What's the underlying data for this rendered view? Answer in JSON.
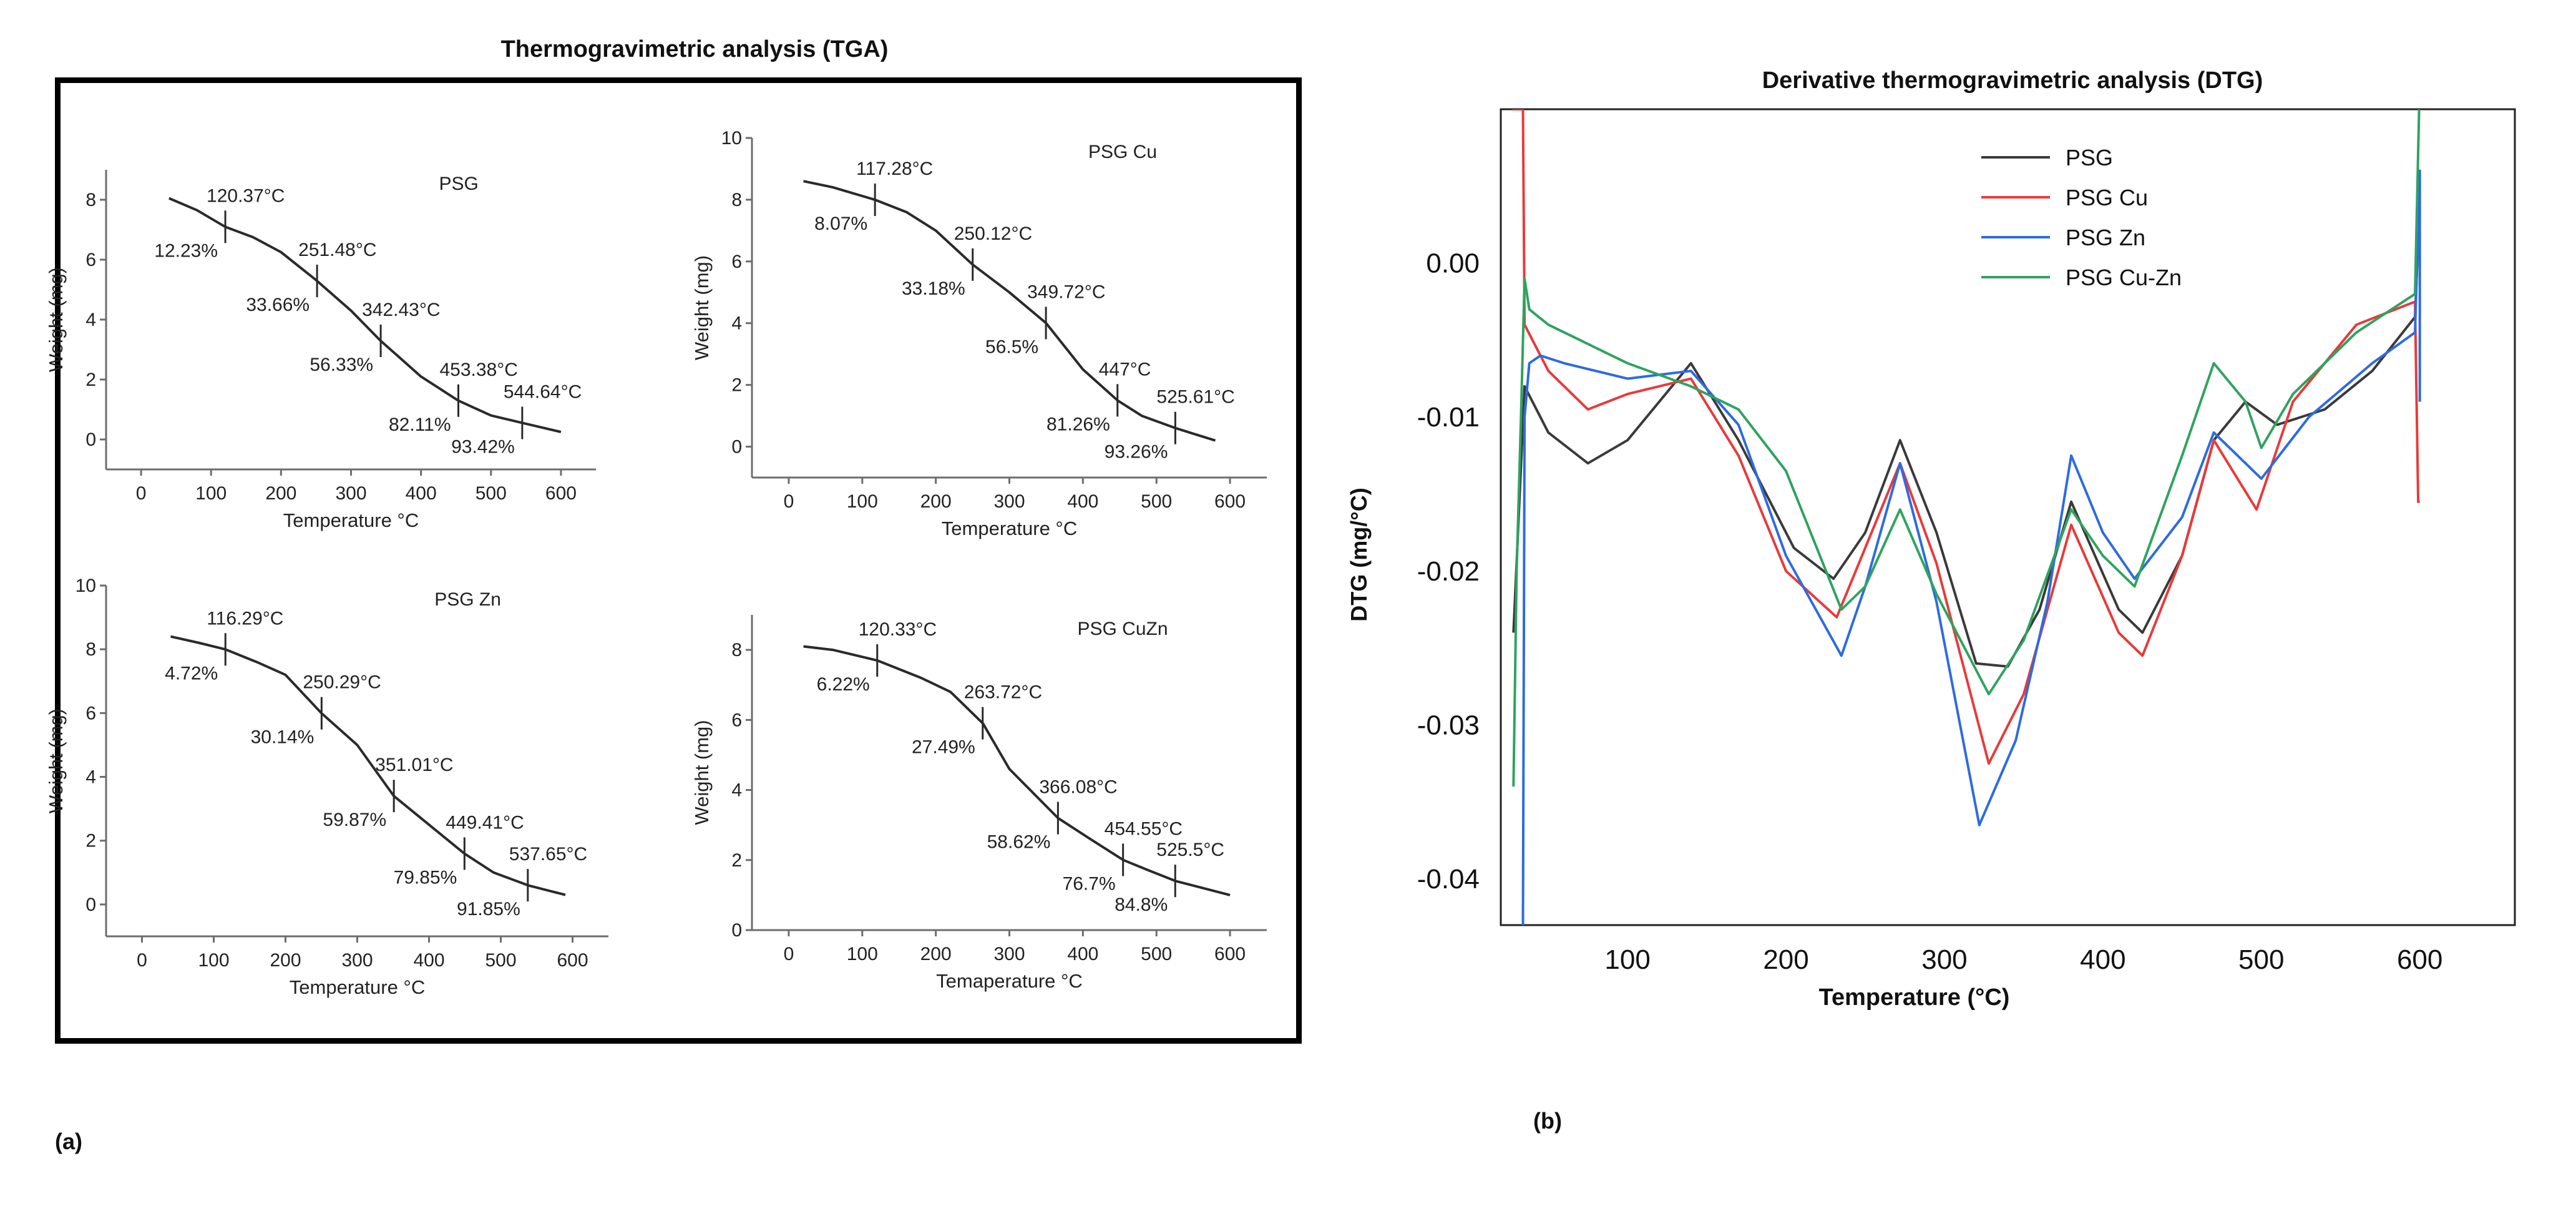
{
  "figure": {
    "panel_a_label": "(a)",
    "panel_b_label": "(b)",
    "tga_title": "Thermogravimetric analysis (TGA)",
    "dtg_title": "Derivative thermogravimetric analysis (DTG)"
  },
  "chart_data": [
    {
      "type": "line",
      "panel": "tga",
      "title": "PSG",
      "xlabel": "Temperature °C",
      "ylabel": "Weight (mg)",
      "xlim": [
        -50,
        650
      ],
      "ylim": [
        -1,
        9
      ],
      "xticks": [
        0,
        100,
        200,
        300,
        400,
        500,
        600
      ],
      "yticks": [
        0,
        2,
        4,
        6,
        8
      ],
      "x": [
        40,
        80,
        120,
        160,
        200,
        251,
        300,
        342,
        400,
        453,
        500,
        545,
        600
      ],
      "y": [
        8.05,
        7.65,
        7.1,
        6.75,
        6.25,
        5.3,
        4.3,
        3.3,
        2.1,
        1.3,
        0.8,
        0.55,
        0.25
      ],
      "markers": [
        {
          "x": 120.37,
          "temp": "120.37°C",
          "pct": "12.23%"
        },
        {
          "x": 251.48,
          "temp": "251.48°C",
          "pct": "33.66%"
        },
        {
          "x": 342.43,
          "temp": "342.43°C",
          "pct": "56.33%"
        },
        {
          "x": 453.38,
          "temp": "453.38°C",
          "pct": "82.11%"
        },
        {
          "x": 544.64,
          "temp": "544.64°C",
          "pct": "93.42%"
        }
      ]
    },
    {
      "type": "line",
      "panel": "tga",
      "title": "PSG Cu",
      "xlabel": "Temperature °C",
      "ylabel": "Weight (mg)",
      "xlim": [
        -50,
        650
      ],
      "ylim": [
        -1,
        10
      ],
      "xticks": [
        0,
        100,
        200,
        300,
        400,
        500,
        600
      ],
      "yticks": [
        0,
        2,
        4,
        6,
        8,
        10
      ],
      "x": [
        20,
        60,
        117,
        160,
        200,
        250,
        300,
        350,
        400,
        447,
        480,
        526,
        580
      ],
      "y": [
        8.6,
        8.4,
        8.0,
        7.6,
        7.0,
        5.9,
        5.0,
        4.0,
        2.5,
        1.5,
        1.0,
        0.6,
        0.2
      ],
      "markers": [
        {
          "x": 117.28,
          "temp": "117.28°C",
          "pct": "8.07%"
        },
        {
          "x": 250.12,
          "temp": "250.12°C",
          "pct": "33.18%"
        },
        {
          "x": 349.72,
          "temp": "349.72°C",
          "pct": "56.5%"
        },
        {
          "x": 447,
          "temp": "447°C",
          "pct": "81.26%"
        },
        {
          "x": 525.61,
          "temp": "525.61°C",
          "pct": "93.26%"
        }
      ]
    },
    {
      "type": "line",
      "panel": "tga",
      "title": "PSG Zn",
      "xlabel": "Temperature °C",
      "ylabel": "Weight (mg)",
      "xlim": [
        -50,
        650
      ],
      "ylim": [
        -1,
        10
      ],
      "xticks": [
        0,
        100,
        200,
        300,
        400,
        500,
        600
      ],
      "yticks": [
        0,
        2,
        4,
        6,
        8,
        10
      ],
      "x": [
        40,
        80,
        116,
        160,
        200,
        250,
        300,
        351,
        400,
        449,
        490,
        538,
        590
      ],
      "y": [
        8.4,
        8.2,
        8.0,
        7.6,
        7.2,
        6.0,
        5.0,
        3.4,
        2.5,
        1.6,
        1.0,
        0.6,
        0.3
      ],
      "markers": [
        {
          "x": 116.29,
          "temp": "116.29°C",
          "pct": "4.72%"
        },
        {
          "x": 250.29,
          "temp": "250.29°C",
          "pct": "30.14%"
        },
        {
          "x": 351.01,
          "temp": "351.01°C",
          "pct": "59.87%"
        },
        {
          "x": 449.41,
          "temp": "449.41°C",
          "pct": "79.85%"
        },
        {
          "x": 537.65,
          "temp": "537.65°C",
          "pct": "91.85%"
        }
      ]
    },
    {
      "type": "line",
      "panel": "tga",
      "title": "PSG CuZn",
      "xlabel": "Temaperature °C",
      "ylabel": "Weight (mg)",
      "xlim": [
        -50,
        650
      ],
      "ylim": [
        0,
        9
      ],
      "xticks": [
        0,
        100,
        200,
        300,
        400,
        500,
        600
      ],
      "yticks": [
        0,
        2,
        4,
        6,
        8
      ],
      "x": [
        20,
        60,
        120,
        180,
        220,
        264,
        300,
        366,
        410,
        455,
        490,
        526,
        600
      ],
      "y": [
        8.1,
        8.0,
        7.7,
        7.2,
        6.8,
        5.9,
        4.6,
        3.2,
        2.6,
        2.0,
        1.7,
        1.4,
        1.0
      ],
      "markers": [
        {
          "x": 120.33,
          "temp": "120.33°C",
          "pct": "6.22%"
        },
        {
          "x": 263.72,
          "temp": "263.72°C",
          "pct": "27.49%"
        },
        {
          "x": 366.08,
          "temp": "366.08°C",
          "pct": "58.62%"
        },
        {
          "x": 454.55,
          "temp": "454.55°C",
          "pct": "76.7%"
        },
        {
          "x": 525.5,
          "temp": "525.5°C",
          "pct": "84.8%"
        }
      ]
    },
    {
      "type": "line",
      "panel": "dtg",
      "title": "Derivative thermogravimetric analysis (DTG)",
      "xlabel": "Temperature   (°C)",
      "ylabel": "DTG (mg/°C)",
      "xlim": [
        20,
        660
      ],
      "ylim": [
        -0.043,
        0.01
      ],
      "xticks": [
        100,
        200,
        300,
        400,
        500,
        600
      ],
      "yticks": [
        0.0,
        -0.01,
        -0.02,
        -0.03,
        -0.04
      ],
      "ytick_labels": [
        "0.00",
        "-0.01",
        "-0.02",
        "-0.03",
        "-0.04"
      ],
      "legend_position": "top",
      "series": [
        {
          "name": "PSG",
          "color": "#3a3a3a",
          "x": [
            28,
            35,
            50,
            75,
            100,
            140,
            170,
            205,
            230,
            250,
            272,
            295,
            320,
            340,
            360,
            380,
            410,
            425,
            450,
            470,
            490,
            510,
            540,
            570,
            597,
            600
          ],
          "y": [
            -0.024,
            -0.008,
            -0.011,
            -0.013,
            -0.0115,
            -0.0065,
            -0.0115,
            -0.0185,
            -0.0205,
            -0.0175,
            -0.0115,
            -0.0175,
            -0.026,
            -0.0262,
            -0.0225,
            -0.0155,
            -0.0225,
            -0.024,
            -0.019,
            -0.0115,
            -0.009,
            -0.0105,
            -0.0095,
            -0.007,
            -0.0035,
            0.004
          ]
        },
        {
          "name": "PSG Cu",
          "color": "#e83a3a",
          "x": [
            27,
            28,
            30,
            33,
            34,
            35,
            50,
            75,
            100,
            140,
            170,
            200,
            232,
            250,
            272,
            295,
            328,
            350,
            380,
            410,
            425,
            450,
            470,
            497,
            520,
            560,
            597,
            599,
            600
          ],
          "y": [
            0.01,
            0.01,
            0.01,
            0.01,
            0.01,
            -0.004,
            -0.007,
            -0.0095,
            -0.0085,
            -0.0075,
            -0.0125,
            -0.02,
            -0.023,
            -0.0185,
            -0.013,
            -0.0195,
            -0.0325,
            -0.028,
            -0.017,
            -0.024,
            -0.0255,
            -0.019,
            -0.0115,
            -0.016,
            -0.009,
            -0.004,
            -0.0025,
            -0.0155,
            -0.0155
          ]
        },
        {
          "name": "PSG Zn",
          "color": "#2e6be0",
          "x": [
            34,
            35,
            38,
            45,
            60,
            100,
            140,
            170,
            200,
            235,
            250,
            272,
            295,
            322,
            345,
            365,
            380,
            400,
            420,
            450,
            470,
            500,
            530,
            570,
            597,
            600,
            600
          ],
          "y": [
            -0.043,
            -0.01,
            -0.0065,
            -0.006,
            -0.0065,
            -0.0075,
            -0.007,
            -0.0105,
            -0.019,
            -0.0255,
            -0.021,
            -0.013,
            -0.022,
            -0.0365,
            -0.031,
            -0.022,
            -0.0125,
            -0.0175,
            -0.0205,
            -0.0165,
            -0.011,
            -0.014,
            -0.01,
            -0.0065,
            -0.0045,
            0.006,
            -0.009
          ]
        },
        {
          "name": "PSG Cu-Zn",
          "color": "#2fa35f",
          "x": [
            28,
            30,
            33,
            35,
            38,
            50,
            80,
            100,
            140,
            170,
            200,
            235,
            250,
            272,
            295,
            328,
            350,
            380,
            400,
            420,
            450,
            470,
            490,
            500,
            520,
            560,
            597,
            600,
            600
          ],
          "y": [
            -0.034,
            -0.02,
            -0.009,
            -0.001,
            -0.003,
            -0.004,
            -0.0055,
            -0.0065,
            -0.008,
            -0.0095,
            -0.0135,
            -0.0225,
            -0.021,
            -0.016,
            -0.0215,
            -0.028,
            -0.0245,
            -0.016,
            -0.019,
            -0.021,
            -0.0125,
            -0.0065,
            -0.009,
            -0.012,
            -0.0085,
            -0.0045,
            -0.002,
            0.012,
            0.012
          ]
        }
      ]
    }
  ]
}
